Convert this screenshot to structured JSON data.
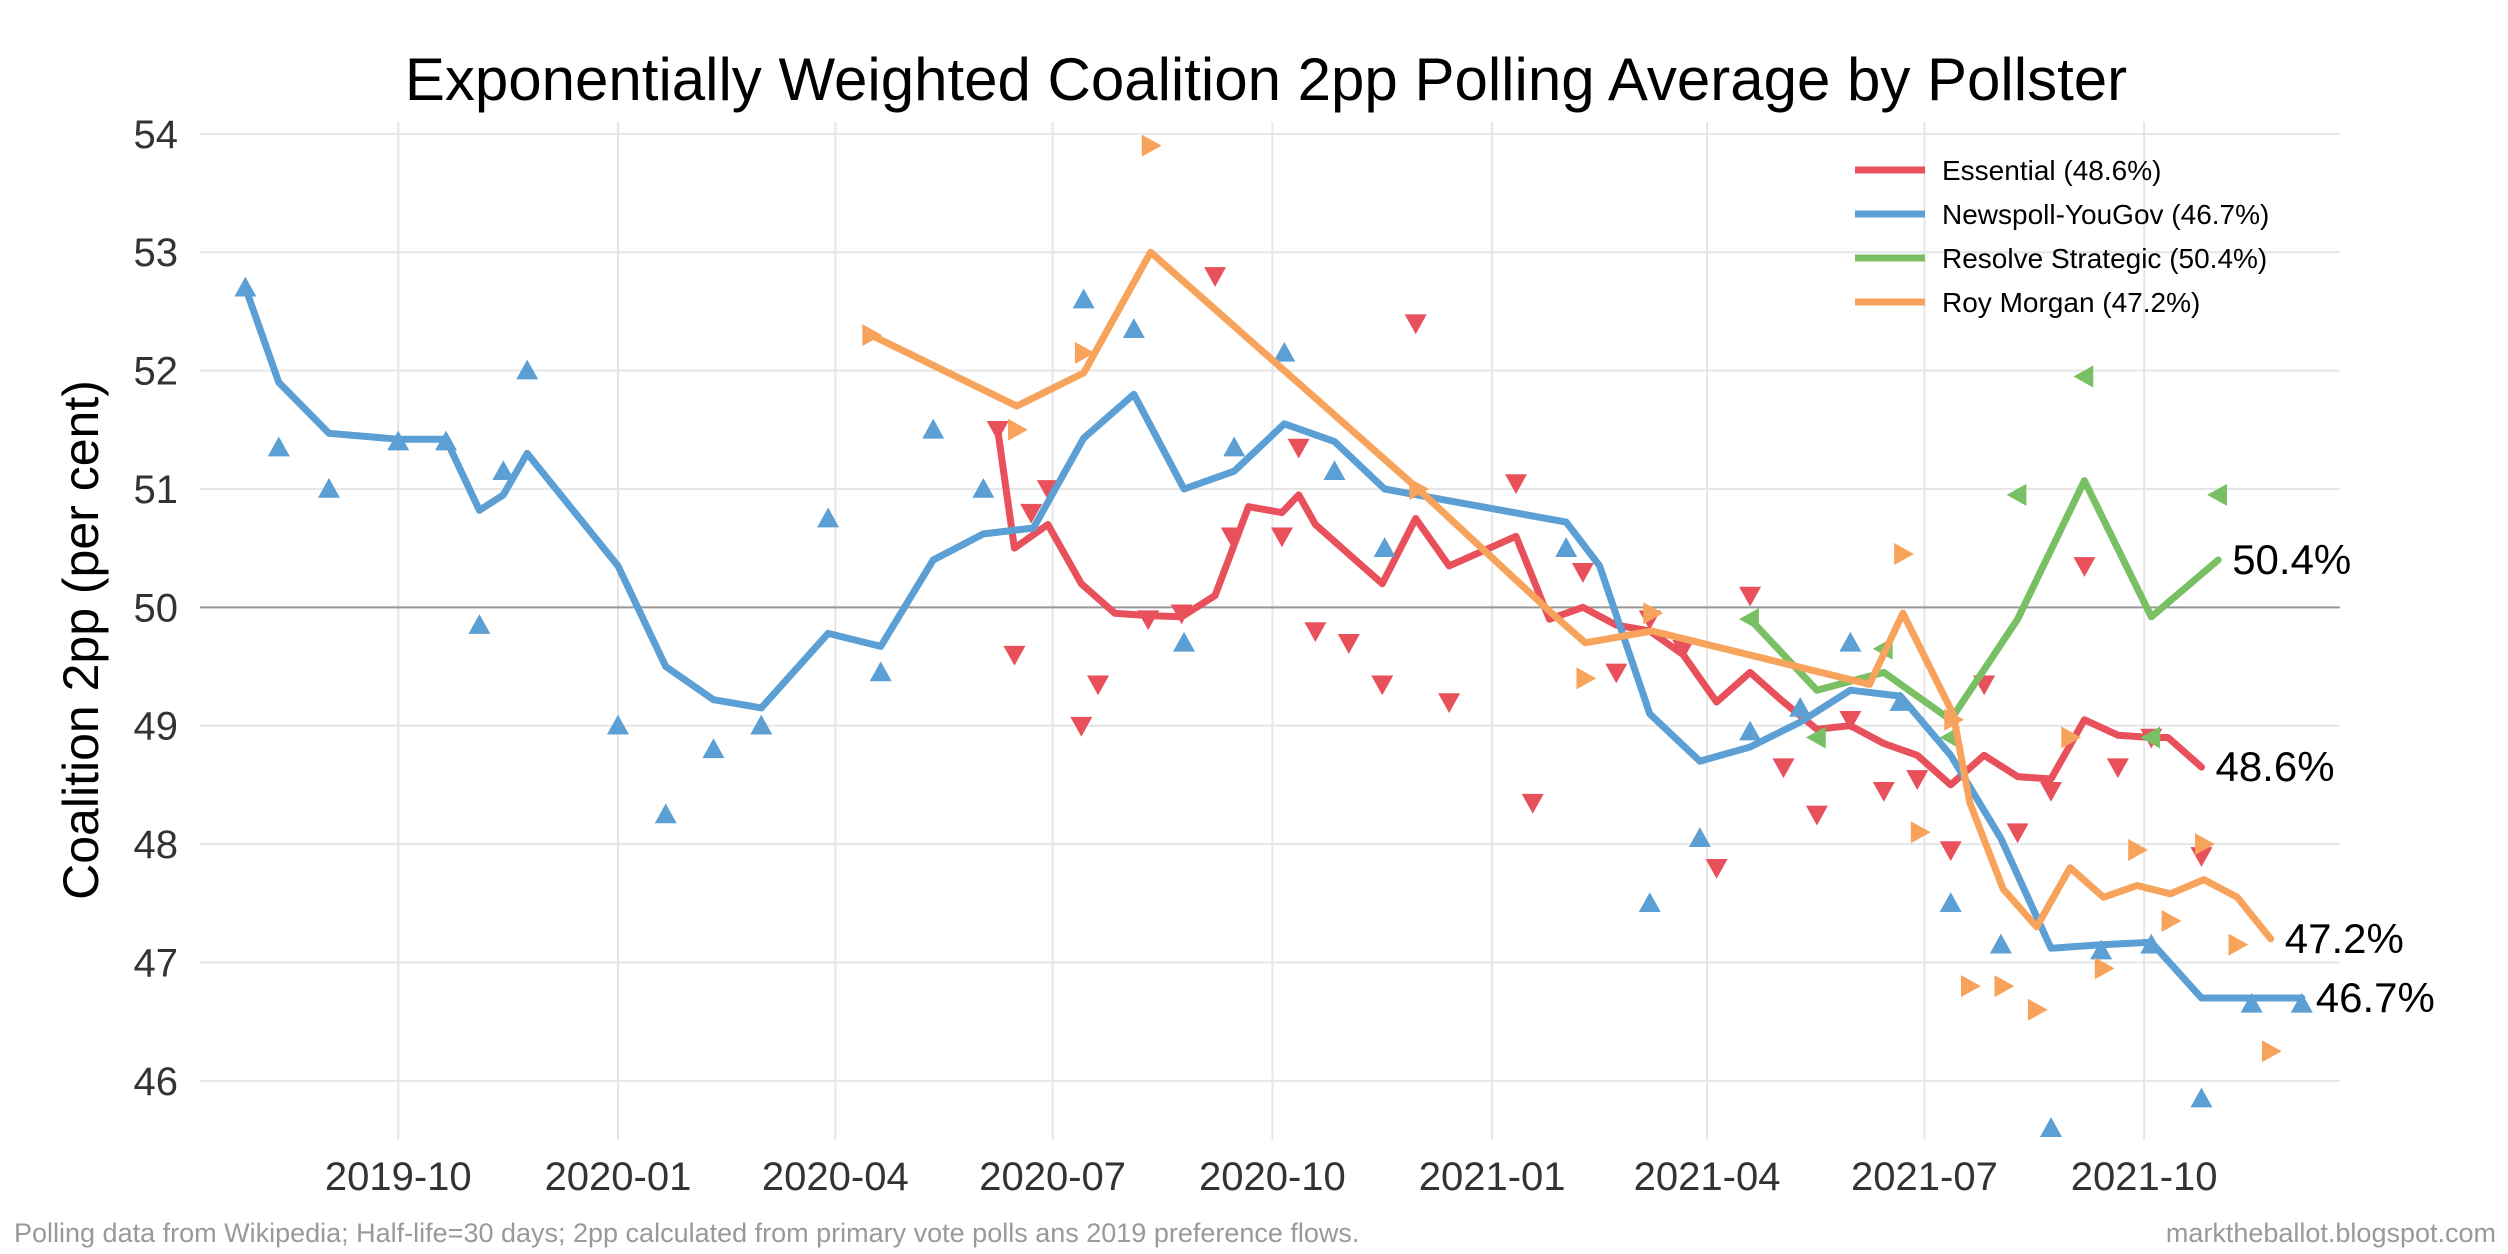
{
  "chart_data": {
    "type": "line",
    "title": "Exponentially Weighted Coalition 2pp Polling Average by Pollster",
    "xlabel": "",
    "ylabel": "Coalition 2pp (per cent)",
    "ylim": [
      45.5,
      54.1
    ],
    "y_ticks": [
      46,
      47,
      48,
      49,
      50,
      51,
      52,
      53,
      54
    ],
    "x_ticks": [
      "2019-10",
      "2020-01",
      "2020-04",
      "2020-07",
      "2020-10",
      "2021-01",
      "2021-04",
      "2021-07",
      "2021-10"
    ],
    "reference_line": 50,
    "grid": true,
    "legend_position": "top-right",
    "caption_left": "Polling data from Wikipedia; Half-life=30 days; 2pp calculated from primary vote polls ans 2019 preference flows.",
    "caption_right": "marktheballot.blogspot.com",
    "series": [
      {
        "name": "Essential (48.6%)",
        "end_label": "48.6%",
        "color": "#e8505b",
        "marker": "triangle-down",
        "line": [
          [
            "2020-06-08",
            51.5
          ],
          [
            "2020-06-15",
            50.5
          ],
          [
            "2020-06-29",
            50.7
          ],
          [
            "2020-07-13",
            50.2
          ],
          [
            "2020-07-27",
            49.95
          ],
          [
            "2020-08-10",
            49.93
          ],
          [
            "2020-08-24",
            49.92
          ],
          [
            "2020-09-07",
            50.1
          ],
          [
            "2020-09-21",
            50.85
          ],
          [
            "2020-10-05",
            50.8
          ],
          [
            "2020-10-12",
            50.95
          ],
          [
            "2020-10-19",
            50.7
          ],
          [
            "2020-11-02",
            50.45
          ],
          [
            "2020-11-16",
            50.2
          ],
          [
            "2020-11-30",
            50.75
          ],
          [
            "2020-12-14",
            50.35
          ],
          [
            "2021-01-11",
            50.6
          ],
          [
            "2021-01-25",
            49.9
          ],
          [
            "2021-02-08",
            50.0
          ],
          [
            "2021-02-22",
            49.85
          ],
          [
            "2021-03-08",
            49.8
          ],
          [
            "2021-03-22",
            49.6
          ],
          [
            "2021-04-05",
            49.2
          ],
          [
            "2021-04-19",
            49.45
          ],
          [
            "2021-05-03",
            49.2
          ],
          [
            "2021-05-17",
            48.97
          ],
          [
            "2021-05-31",
            49.0
          ],
          [
            "2021-06-14",
            48.85
          ],
          [
            "2021-06-28",
            48.75
          ],
          [
            "2021-07-12",
            48.5
          ],
          [
            "2021-07-26",
            48.75
          ],
          [
            "2021-08-09",
            48.57
          ],
          [
            "2021-08-23",
            48.55
          ],
          [
            "2021-09-06",
            49.05
          ],
          [
            "2021-09-20",
            48.92
          ],
          [
            "2021-10-04",
            48.9
          ],
          [
            "2021-10-11",
            48.9
          ],
          [
            "2021-10-25",
            48.65
          ]
        ],
        "points": [
          [
            "2020-06-08",
            51.5
          ],
          [
            "2020-06-15",
            49.6
          ],
          [
            "2020-06-22",
            50.8
          ],
          [
            "2020-06-29",
            51.0
          ],
          [
            "2020-07-13",
            49.0
          ],
          [
            "2020-07-20",
            49.35
          ],
          [
            "2020-08-10",
            49.9
          ],
          [
            "2020-08-24",
            49.95
          ],
          [
            "2020-09-07",
            52.8
          ],
          [
            "2020-09-14",
            50.6
          ],
          [
            "2020-10-05",
            50.6
          ],
          [
            "2020-10-12",
            51.35
          ],
          [
            "2020-10-19",
            49.8
          ],
          [
            "2020-11-02",
            49.7
          ],
          [
            "2020-11-16",
            49.35
          ],
          [
            "2020-11-30",
            52.4
          ],
          [
            "2020-12-14",
            49.2
          ],
          [
            "2021-01-11",
            51.05
          ],
          [
            "2021-01-18",
            48.35
          ],
          [
            "2021-02-08",
            50.3
          ],
          [
            "2021-02-22",
            49.45
          ],
          [
            "2021-03-08",
            49.9
          ],
          [
            "2021-03-22",
            49.65
          ],
          [
            "2021-04-05",
            47.8
          ],
          [
            "2021-04-19",
            50.1
          ],
          [
            "2021-05-03",
            48.65
          ],
          [
            "2021-05-17",
            48.25
          ],
          [
            "2021-05-31",
            49.05
          ],
          [
            "2021-06-14",
            48.45
          ],
          [
            "2021-06-28",
            48.55
          ],
          [
            "2021-07-12",
            47.95
          ],
          [
            "2021-07-26",
            49.35
          ],
          [
            "2021-08-09",
            48.1
          ],
          [
            "2021-08-23",
            48.45
          ],
          [
            "2021-09-06",
            50.35
          ],
          [
            "2021-09-20",
            48.65
          ],
          [
            "2021-10-04",
            48.9
          ],
          [
            "2021-10-25",
            47.9
          ]
        ]
      },
      {
        "name": "Newspoll-YouGov (46.7%)",
        "end_label": "46.7%",
        "color": "#5b9fd4",
        "marker": "triangle-up",
        "line": [
          [
            "2019-07-29",
            52.7
          ],
          [
            "2019-08-12",
            51.9
          ],
          [
            "2019-09-02",
            51.47
          ],
          [
            "2019-10-01",
            51.42
          ],
          [
            "2019-10-21",
            51.42
          ],
          [
            "2019-11-04",
            50.82
          ],
          [
            "2019-11-14",
            50.95
          ],
          [
            "2019-11-24",
            51.3
          ],
          [
            "2020-01-01",
            50.35
          ],
          [
            "2020-01-21",
            49.5
          ],
          [
            "2020-02-10",
            49.22
          ],
          [
            "2020-03-01",
            49.15
          ],
          [
            "2020-03-29",
            49.78
          ],
          [
            "2020-04-20",
            49.67
          ],
          [
            "2020-05-12",
            50.4
          ],
          [
            "2020-06-02",
            50.62
          ],
          [
            "2020-06-23",
            50.67
          ],
          [
            "2020-07-14",
            51.43
          ],
          [
            "2020-08-04",
            51.8
          ],
          [
            "2020-08-25",
            51.0
          ],
          [
            "2020-09-15",
            51.15
          ],
          [
            "2020-10-06",
            51.55
          ],
          [
            "2020-10-27",
            51.4
          ],
          [
            "2020-11-17",
            51.0
          ],
          [
            "2021-02-01",
            50.72
          ],
          [
            "2021-02-15",
            50.35
          ],
          [
            "2021-03-08",
            49.1
          ],
          [
            "2021-03-29",
            48.7
          ],
          [
            "2021-04-19",
            48.82
          ],
          [
            "2021-05-10",
            49.03
          ],
          [
            "2021-05-31",
            49.3
          ],
          [
            "2021-06-21",
            49.25
          ],
          [
            "2021-07-12",
            48.75
          ],
          [
            "2021-08-02",
            48.05
          ],
          [
            "2021-08-23",
            47.12
          ],
          [
            "2021-09-13",
            47.15
          ],
          [
            "2021-10-04",
            47.17
          ],
          [
            "2021-10-25",
            46.7
          ],
          [
            "2021-11-15",
            46.7
          ],
          [
            "2021-12-06",
            46.7
          ]
        ],
        "points": [
          [
            "2019-07-29",
            52.7
          ],
          [
            "2019-08-12",
            51.35
          ],
          [
            "2019-09-02",
            51.0
          ],
          [
            "2019-10-01",
            51.4
          ],
          [
            "2019-10-21",
            51.4
          ],
          [
            "2019-11-04",
            49.85
          ],
          [
            "2019-11-14",
            51.15
          ],
          [
            "2019-11-24",
            52.0
          ],
          [
            "2020-01-01",
            49.0
          ],
          [
            "2020-01-21",
            48.25
          ],
          [
            "2020-02-10",
            48.8
          ],
          [
            "2020-03-01",
            49.0
          ],
          [
            "2020-03-29",
            50.75
          ],
          [
            "2020-04-20",
            49.45
          ],
          [
            "2020-05-12",
            51.5
          ],
          [
            "2020-06-02",
            51.0
          ],
          [
            "2020-07-14",
            52.6
          ],
          [
            "2020-08-04",
            52.35
          ],
          [
            "2020-08-25",
            49.7
          ],
          [
            "2020-09-15",
            51.35
          ],
          [
            "2020-10-06",
            52.15
          ],
          [
            "2020-10-27",
            51.15
          ],
          [
            "2020-11-17",
            50.5
          ],
          [
            "2021-02-01",
            50.5
          ],
          [
            "2021-03-08",
            47.5
          ],
          [
            "2021-03-29",
            48.05
          ],
          [
            "2021-04-19",
            48.95
          ],
          [
            "2021-05-10",
            49.15
          ],
          [
            "2021-05-31",
            49.7
          ],
          [
            "2021-06-21",
            49.2
          ],
          [
            "2021-07-12",
            47.5
          ],
          [
            "2021-08-02",
            47.15
          ],
          [
            "2021-08-23",
            45.6
          ],
          [
            "2021-09-13",
            47.1
          ],
          [
            "2021-10-04",
            47.15
          ],
          [
            "2021-10-25",
            45.85
          ],
          [
            "2021-11-15",
            46.65
          ],
          [
            "2021-12-06",
            46.65
          ]
        ]
      },
      {
        "name": "Resolve Strategic (50.4%)",
        "end_label": "50.4%",
        "color": "#79bf63",
        "marker": "triangle-left",
        "line": [
          [
            "2021-04-19",
            49.9
          ],
          [
            "2021-05-17",
            49.3
          ],
          [
            "2021-06-14",
            49.45
          ],
          [
            "2021-07-12",
            49.05
          ],
          [
            "2021-08-09",
            49.9
          ],
          [
            "2021-09-06",
            51.07
          ],
          [
            "2021-10-04",
            49.92
          ],
          [
            "2021-11-01",
            50.4
          ]
        ],
        "points": [
          [
            "2021-04-19",
            49.9
          ],
          [
            "2021-05-17",
            48.9
          ],
          [
            "2021-06-14",
            49.65
          ],
          [
            "2021-07-12",
            48.9
          ],
          [
            "2021-08-09",
            50.95
          ],
          [
            "2021-09-06",
            51.95
          ],
          [
            "2021-10-04",
            48.9
          ],
          [
            "2021-11-01",
            50.95
          ]
        ]
      },
      {
        "name": "Roy Morgan (47.2%)",
        "end_label": "47.2%",
        "color": "#f7a35c",
        "marker": "triangle-right",
        "line": [
          [
            "2020-04-16",
            52.3
          ],
          [
            "2020-06-16",
            51.7
          ],
          [
            "2020-07-14",
            51.98
          ],
          [
            "2020-08-11",
            53.0
          ],
          [
            "2020-12-01",
            51.0
          ],
          [
            "2021-01-26",
            49.95
          ],
          [
            "2021-02-09",
            49.7
          ],
          [
            "2021-03-09",
            49.8
          ],
          [
            "2021-06-08",
            49.35
          ],
          [
            "2021-06-22",
            49.95
          ],
          [
            "2021-07-13",
            49.1
          ],
          [
            "2021-07-20",
            48.35
          ],
          [
            "2021-08-03",
            47.62
          ],
          [
            "2021-08-17",
            47.3
          ],
          [
            "2021-08-31",
            47.8
          ],
          [
            "2021-09-14",
            47.55
          ],
          [
            "2021-09-28",
            47.65
          ],
          [
            "2021-10-12",
            47.58
          ],
          [
            "2021-10-26",
            47.7
          ],
          [
            "2021-11-09",
            47.55
          ],
          [
            "2021-11-23",
            47.2
          ]
        ],
        "points": [
          [
            "2020-04-16",
            52.3
          ],
          [
            "2020-06-16",
            51.5
          ],
          [
            "2020-07-14",
            52.15
          ],
          [
            "2020-08-11",
            53.9
          ],
          [
            "2020-12-01",
            51.0
          ],
          [
            "2021-02-09",
            49.4
          ],
          [
            "2021-03-09",
            49.95
          ],
          [
            "2021-06-22",
            50.45
          ],
          [
            "2021-06-29",
            48.1
          ],
          [
            "2021-07-13",
            49.05
          ],
          [
            "2021-07-20",
            46.8
          ],
          [
            "2021-08-03",
            46.8
          ],
          [
            "2021-08-17",
            46.6
          ],
          [
            "2021-08-31",
            48.9
          ],
          [
            "2021-09-14",
            46.95
          ],
          [
            "2021-09-28",
            47.95
          ],
          [
            "2021-10-12",
            47.35
          ],
          [
            "2021-10-26",
            48.0
          ],
          [
            "2021-11-09",
            47.15
          ],
          [
            "2021-11-23",
            46.25
          ]
        ]
      }
    ]
  }
}
